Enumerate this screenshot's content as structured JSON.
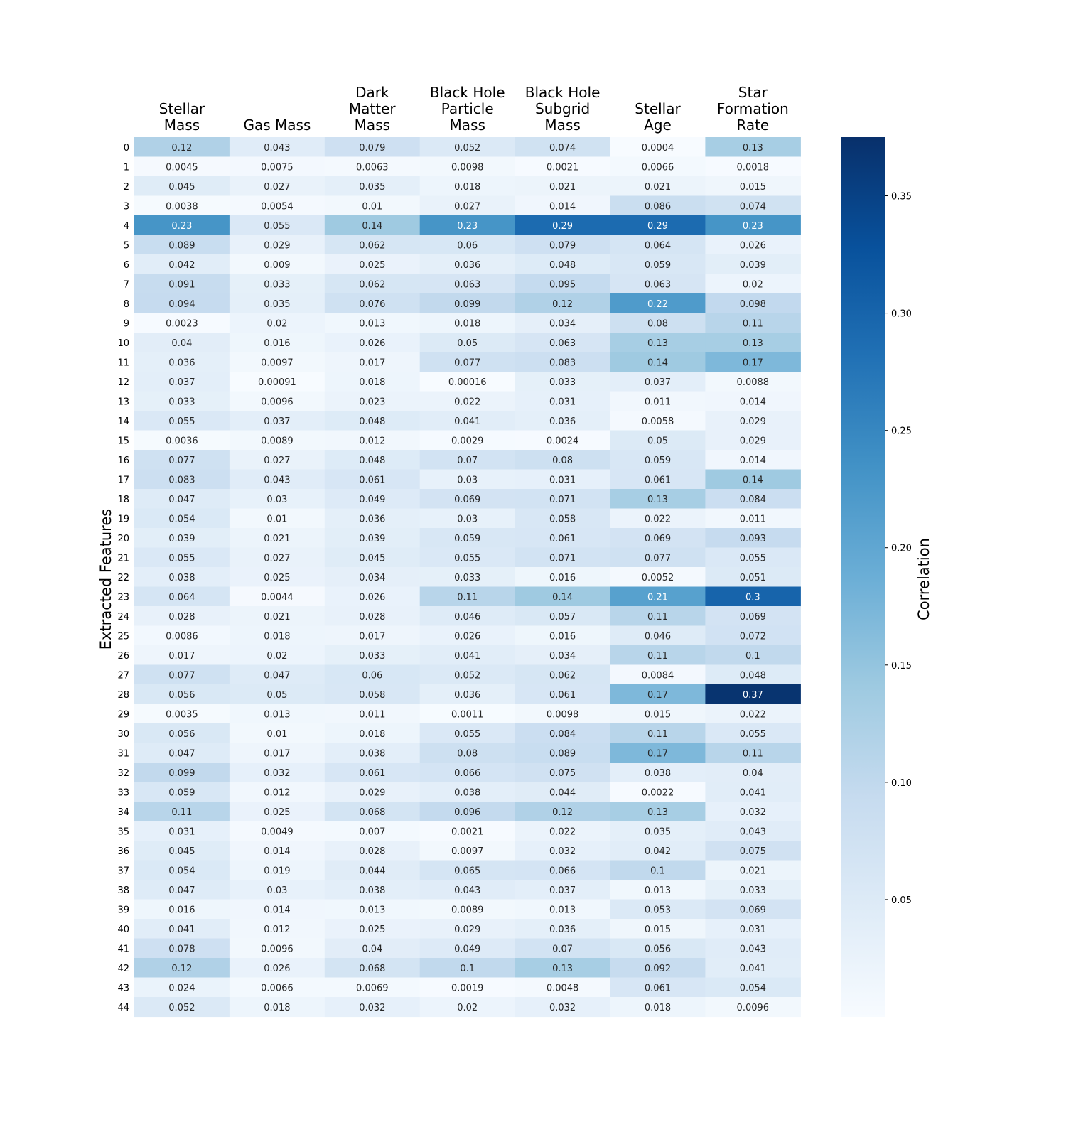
{
  "chart_data": {
    "type": "heatmap",
    "title": "",
    "xlabel": "",
    "ylabel": "Extracted Features",
    "colorbar_label": "Correlation",
    "colormap": "Blues",
    "color_range": [
      0,
      0.375
    ],
    "colorbar_ticks": [
      0.05,
      0.1,
      0.15,
      0.2,
      0.25,
      0.3,
      0.35
    ],
    "colorbar_tick_labels": [
      "0.05",
      "0.10",
      "0.15",
      "0.20",
      "0.25",
      "0.30",
      "0.35"
    ],
    "columns": [
      [
        "Stellar",
        "Mass"
      ],
      [
        "Gas Mass"
      ],
      [
        "Dark",
        "Matter",
        "Mass"
      ],
      [
        "Black Hole",
        "Particle",
        "Mass"
      ],
      [
        "Black Hole",
        "Subgrid",
        "Mass"
      ],
      [
        "Stellar",
        "Age"
      ],
      [
        "Star",
        "Formation",
        "Rate"
      ]
    ],
    "rows": [
      "0",
      "1",
      "2",
      "3",
      "4",
      "5",
      "6",
      "7",
      "8",
      "9",
      "10",
      "11",
      "12",
      "13",
      "14",
      "15",
      "16",
      "17",
      "18",
      "19",
      "20",
      "21",
      "22",
      "23",
      "24",
      "25",
      "26",
      "27",
      "28",
      "29",
      "30",
      "31",
      "32",
      "33",
      "34",
      "35",
      "36",
      "37",
      "38",
      "39",
      "40",
      "41",
      "42",
      "43",
      "44"
    ],
    "values": [
      [
        "0.12",
        "0.043",
        "0.079",
        "0.052",
        "0.074",
        "0.0004",
        "0.13"
      ],
      [
        "0.0045",
        "0.0075",
        "0.0063",
        "0.0098",
        "0.0021",
        "0.0066",
        "0.0018"
      ],
      [
        "0.045",
        "0.027",
        "0.035",
        "0.018",
        "0.021",
        "0.021",
        "0.015"
      ],
      [
        "0.0038",
        "0.0054",
        "0.01",
        "0.027",
        "0.014",
        "0.086",
        "0.074"
      ],
      [
        "0.23",
        "0.055",
        "0.14",
        "0.23",
        "0.29",
        "0.29",
        "0.23"
      ],
      [
        "0.089",
        "0.029",
        "0.062",
        "0.06",
        "0.079",
        "0.064",
        "0.026"
      ],
      [
        "0.042",
        "0.009",
        "0.025",
        "0.036",
        "0.048",
        "0.059",
        "0.039"
      ],
      [
        "0.091",
        "0.033",
        "0.062",
        "0.063",
        "0.095",
        "0.063",
        "0.02"
      ],
      [
        "0.094",
        "0.035",
        "0.076",
        "0.099",
        "0.12",
        "0.22",
        "0.098"
      ],
      [
        "0.0023",
        "0.02",
        "0.013",
        "0.018",
        "0.034",
        "0.08",
        "0.11"
      ],
      [
        "0.04",
        "0.016",
        "0.026",
        "0.05",
        "0.063",
        "0.13",
        "0.13"
      ],
      [
        "0.036",
        "0.0097",
        "0.017",
        "0.077",
        "0.083",
        "0.14",
        "0.17"
      ],
      [
        "0.037",
        "0.00091",
        "0.018",
        "0.00016",
        "0.033",
        "0.037",
        "0.0088"
      ],
      [
        "0.033",
        "0.0096",
        "0.023",
        "0.022",
        "0.031",
        "0.011",
        "0.014"
      ],
      [
        "0.055",
        "0.037",
        "0.048",
        "0.041",
        "0.036",
        "0.0058",
        "0.029"
      ],
      [
        "0.0036",
        "0.0089",
        "0.012",
        "0.0029",
        "0.0024",
        "0.05",
        "0.029"
      ],
      [
        "0.077",
        "0.027",
        "0.048",
        "0.07",
        "0.08",
        "0.059",
        "0.014"
      ],
      [
        "0.083",
        "0.043",
        "0.061",
        "0.03",
        "0.031",
        "0.061",
        "0.14"
      ],
      [
        "0.047",
        "0.03",
        "0.049",
        "0.069",
        "0.071",
        "0.13",
        "0.084"
      ],
      [
        "0.054",
        "0.01",
        "0.036",
        "0.03",
        "0.058",
        "0.022",
        "0.011"
      ],
      [
        "0.039",
        "0.021",
        "0.039",
        "0.059",
        "0.061",
        "0.069",
        "0.093"
      ],
      [
        "0.055",
        "0.027",
        "0.045",
        "0.055",
        "0.071",
        "0.077",
        "0.055"
      ],
      [
        "0.038",
        "0.025",
        "0.034",
        "0.033",
        "0.016",
        "0.0052",
        "0.051"
      ],
      [
        "0.064",
        "0.0044",
        "0.026",
        "0.11",
        "0.14",
        "0.21",
        "0.3"
      ],
      [
        "0.028",
        "0.021",
        "0.028",
        "0.046",
        "0.057",
        "0.11",
        "0.069"
      ],
      [
        "0.0086",
        "0.018",
        "0.017",
        "0.026",
        "0.016",
        "0.046",
        "0.072"
      ],
      [
        "0.017",
        "0.02",
        "0.033",
        "0.041",
        "0.034",
        "0.11",
        "0.1"
      ],
      [
        "0.077",
        "0.047",
        "0.06",
        "0.052",
        "0.062",
        "0.0084",
        "0.048"
      ],
      [
        "0.056",
        "0.05",
        "0.058",
        "0.036",
        "0.061",
        "0.17",
        "0.37"
      ],
      [
        "0.0035",
        "0.013",
        "0.011",
        "0.0011",
        "0.0098",
        "0.015",
        "0.022"
      ],
      [
        "0.056",
        "0.01",
        "0.018",
        "0.055",
        "0.084",
        "0.11",
        "0.055"
      ],
      [
        "0.047",
        "0.017",
        "0.038",
        "0.08",
        "0.089",
        "0.17",
        "0.11"
      ],
      [
        "0.099",
        "0.032",
        "0.061",
        "0.066",
        "0.075",
        "0.038",
        "0.04"
      ],
      [
        "0.059",
        "0.012",
        "0.029",
        "0.038",
        "0.044",
        "0.0022",
        "0.041"
      ],
      [
        "0.11",
        "0.025",
        "0.068",
        "0.096",
        "0.12",
        "0.13",
        "0.032"
      ],
      [
        "0.031",
        "0.0049",
        "0.007",
        "0.0021",
        "0.022",
        "0.035",
        "0.043"
      ],
      [
        "0.045",
        "0.014",
        "0.028",
        "0.0097",
        "0.032",
        "0.042",
        "0.075"
      ],
      [
        "0.054",
        "0.019",
        "0.044",
        "0.065",
        "0.066",
        "0.1",
        "0.021"
      ],
      [
        "0.047",
        "0.03",
        "0.038",
        "0.043",
        "0.037",
        "0.013",
        "0.033"
      ],
      [
        "0.016",
        "0.014",
        "0.013",
        "0.0089",
        "0.013",
        "0.053",
        "0.069"
      ],
      [
        "0.041",
        "0.012",
        "0.025",
        "0.029",
        "0.036",
        "0.015",
        "0.031"
      ],
      [
        "0.078",
        "0.0096",
        "0.04",
        "0.049",
        "0.07",
        "0.056",
        "0.043"
      ],
      [
        "0.12",
        "0.026",
        "0.068",
        "0.1",
        "0.13",
        "0.092",
        "0.041"
      ],
      [
        "0.024",
        "0.0066",
        "0.0069",
        "0.0019",
        "0.0048",
        "0.061",
        "0.054"
      ],
      [
        "0.052",
        "0.018",
        "0.032",
        "0.02",
        "0.032",
        "0.018",
        "0.0096"
      ]
    ]
  }
}
